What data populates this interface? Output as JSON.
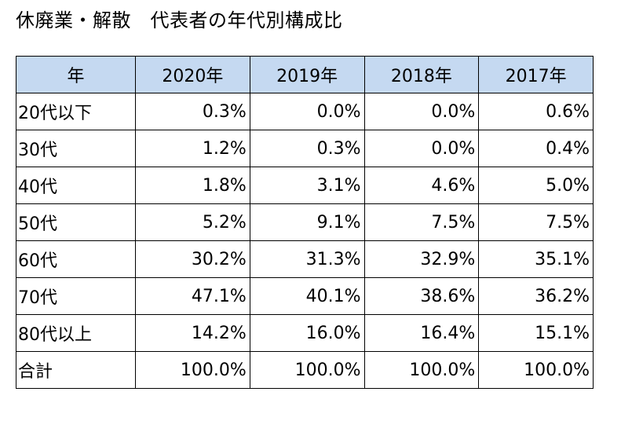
{
  "title": "休廃業・解散　代表者の年代別構成比",
  "table": {
    "header_label": "年",
    "years": [
      "2020年",
      "2019年",
      "2018年",
      "2017年"
    ],
    "rows": [
      {
        "label": "20代以下",
        "values": [
          "0.3%",
          "0.0%",
          "0.0%",
          "0.6%"
        ]
      },
      {
        "label": "30代",
        "values": [
          "1.2%",
          "0.3%",
          "0.0%",
          "0.4%"
        ]
      },
      {
        "label": "40代",
        "values": [
          "1.8%",
          "3.1%",
          "4.6%",
          "5.0%"
        ]
      },
      {
        "label": "50代",
        "values": [
          "5.2%",
          "9.1%",
          "7.5%",
          "7.5%"
        ]
      },
      {
        "label": "60代",
        "values": [
          "30.2%",
          "31.3%",
          "32.9%",
          "35.1%"
        ]
      },
      {
        "label": "70代",
        "values": [
          "47.1%",
          "40.1%",
          "38.6%",
          "36.2%"
        ]
      },
      {
        "label": "80代以上",
        "values": [
          "14.2%",
          "16.0%",
          "16.4%",
          "15.1%"
        ]
      },
      {
        "label": "合計",
        "values": [
          "100.0%",
          "100.0%",
          "100.0%",
          "100.0%"
        ]
      }
    ]
  },
  "colors": {
    "header_background": "#c5d9f1",
    "border": "#000000",
    "text": "#000000"
  }
}
